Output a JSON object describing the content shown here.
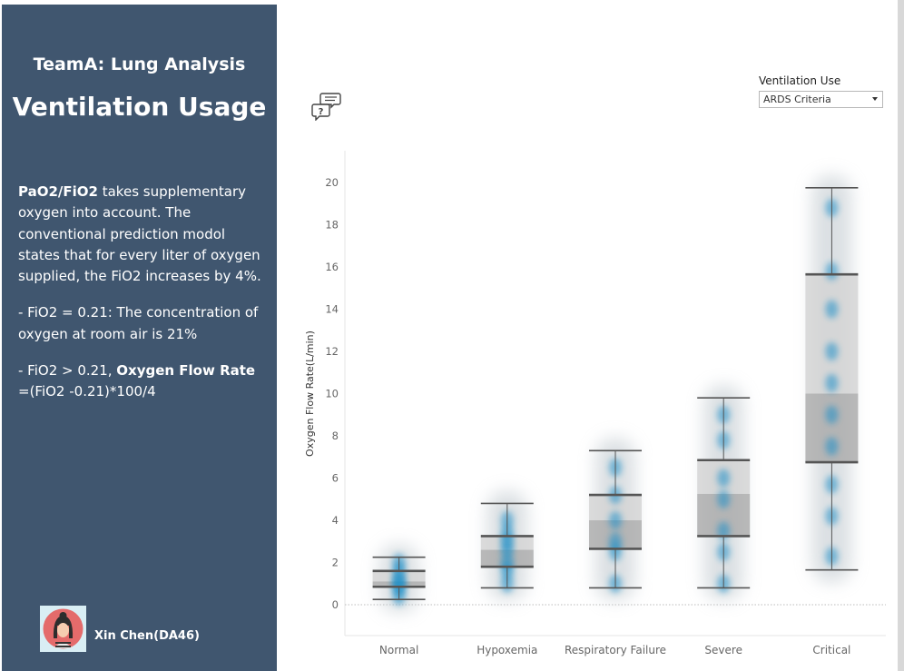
{
  "sidebar": {
    "team_title": "TeamA: Lung Analysis",
    "page_title": "Ventilation Usage",
    "desc1_bold": "PaO2/FiO2",
    "desc1_rest": " takes supplementary oxygen into account. The conventional prediction modol states that for every liter of oxygen supplied, the FiO2 increases by 4%.",
    "desc2": "- FiO2 = 0.21: The concentration of oxygen at room air is 21%",
    "desc3_pre": "- FiO2 > 0.21, ",
    "desc3_bold": "Oxygen Flow Rate",
    "desc3_post": " =(FiO2 -0.21)*100/4",
    "author": "Xin Chen(DA46)"
  },
  "filter": {
    "label": "Ventilation Use",
    "selected": "ARDS Criteria"
  },
  "colors": {
    "sidebar_bg": "#40566f",
    "dot_blue": "#1f8fc8",
    "box_light": "#d3d3d3",
    "box_dark": "#a9a9a9"
  },
  "icons": {
    "comment": "comment-question-icon",
    "dropdown": "chevron-down-icon",
    "avatar": "avatar-portrait"
  },
  "chart_data": {
    "type": "boxplot",
    "ylabel": "Oxygen Flow Rate(L/min)",
    "ylim": [
      0,
      21
    ],
    "yticks": [
      0,
      2,
      4,
      6,
      8,
      10,
      12,
      14,
      16,
      18,
      20
    ],
    "categories": [
      "Normal",
      "Hypoxemia",
      "Respiratory Failure",
      "Severe",
      "Critical"
    ],
    "boxes": [
      {
        "min": 0.25,
        "q1": 0.85,
        "median": 1.1,
        "q3": 1.6,
        "max": 2.25,
        "points": [
          0.4,
          0.8,
          1.0,
          1.2,
          1.6,
          2.0
        ]
      },
      {
        "min": 0.8,
        "q1": 1.8,
        "median": 2.6,
        "q3": 3.25,
        "max": 4.8,
        "points": [
          1.0,
          1.6,
          2.0,
          2.6,
          3.0,
          3.4,
          4.0
        ]
      },
      {
        "min": 0.8,
        "q1": 2.65,
        "median": 4.0,
        "q3": 5.2,
        "max": 7.3,
        "points": [
          1.0,
          2.5,
          3.0,
          4.0,
          5.2,
          6.5
        ]
      },
      {
        "min": 0.8,
        "q1": 3.25,
        "median": 5.25,
        "q3": 6.85,
        "max": 9.8,
        "points": [
          1.0,
          2.5,
          3.5,
          5.0,
          6.0,
          7.8,
          9.0
        ]
      },
      {
        "min": 1.65,
        "q1": 6.75,
        "median": 10.0,
        "q3": 15.65,
        "max": 19.75,
        "points": [
          2.3,
          4.2,
          5.7,
          7.5,
          9.0,
          10.5,
          12.0,
          14.0,
          15.8,
          18.8
        ]
      }
    ]
  }
}
